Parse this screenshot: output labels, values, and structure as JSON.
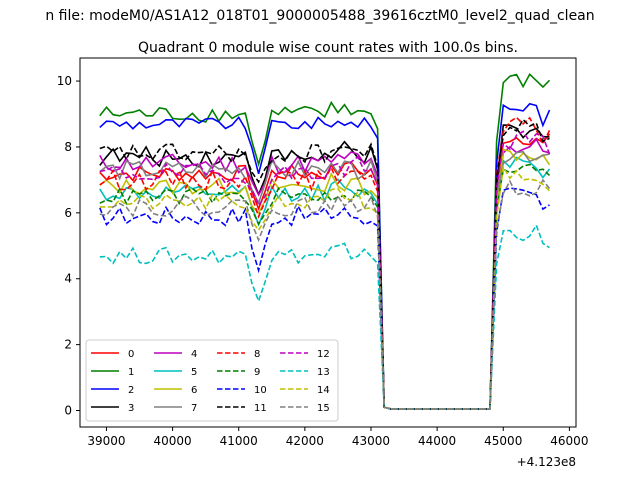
{
  "chart_data": {
    "type": "line",
    "suptitle": "n file: modeM0/AS1A12_018T01_9000005488_39616cztM0_level2_quad_clean",
    "title": "Quadrant 0 module wise count rates with 100.0s bins.",
    "xlabel": "",
    "ylabel": "",
    "x_offset_label": "+4.123e8",
    "xlim": [
      38600,
      46100
    ],
    "ylim": [
      -0.5,
      10.7
    ],
    "x_ticks": [
      39000,
      40000,
      41000,
      42000,
      43000,
      44000,
      45000,
      46000
    ],
    "x_tick_labels": [
      "39000",
      "40000",
      "41000",
      "42000",
      "43000",
      "44000",
      "45000",
      "46000"
    ],
    "y_ticks": [
      0,
      2,
      4,
      6,
      8,
      10
    ],
    "y_tick_labels": [
      "0",
      "2",
      "4",
      "6",
      "8",
      "10"
    ],
    "grid": false,
    "legend": {
      "placement": "lower-left",
      "columns": 4
    },
    "gap": {
      "x_start": 43300,
      "x_end": 44800,
      "level": 0.05,
      "entry_x": [
        43100,
        43200,
        43300
      ],
      "exit_x": [
        44800,
        44900,
        45000
      ]
    },
    "x_start": 38900,
    "x_step": 100,
    "series": [
      {
        "name": "0",
        "color": "#ff0000",
        "dash": "solid",
        "base": 7.2,
        "high": 8.3,
        "amp": 0.25,
        "dip": 1.0
      },
      {
        "name": "1",
        "color": "#008000",
        "dash": "solid",
        "base": 9.0,
        "high": 10.0,
        "amp": 0.25,
        "dip": 1.6
      },
      {
        "name": "2",
        "color": "#0000ff",
        "dash": "solid",
        "base": 8.7,
        "high": 9.2,
        "amp": 0.2,
        "dip": 1.5
      },
      {
        "name": "3",
        "color": "#000000",
        "dash": "solid",
        "base": 7.7,
        "high": 8.4,
        "amp": 0.3,
        "dip": 1.0
      },
      {
        "name": "4",
        "color": "#bf00bf",
        "dash": "solid",
        "base": 7.5,
        "high": 8.0,
        "amp": 0.3,
        "dip": 1.0
      },
      {
        "name": "5",
        "color": "#00bfbf",
        "dash": "solid",
        "base": 6.6,
        "high": 7.6,
        "amp": 0.25,
        "dip": 0.9
      },
      {
        "name": "6",
        "color": "#bfbf00",
        "dash": "solid",
        "base": 6.8,
        "high": 7.8,
        "amp": 0.25,
        "dip": 0.9
      },
      {
        "name": "7",
        "color": "#808080",
        "dash": "solid",
        "base": 7.3,
        "high": 7.8,
        "amp": 0.3,
        "dip": 1.0
      },
      {
        "name": "8",
        "color": "#ff0000",
        "dash": "dashed",
        "base": 7.0,
        "high": 8.6,
        "amp": 0.3,
        "dip": 1.0
      },
      {
        "name": "9",
        "color": "#008000",
        "dash": "dashed",
        "base": 6.5,
        "high": 7.3,
        "amp": 0.25,
        "dip": 0.9
      },
      {
        "name": "10",
        "color": "#0000ff",
        "dash": "dashed",
        "base": 5.9,
        "high": 6.5,
        "amp": 0.3,
        "dip": 1.6
      },
      {
        "name": "11",
        "color": "#000000",
        "dash": "dashed",
        "base": 7.8,
        "high": 8.6,
        "amp": 0.3,
        "dip": 1.0
      },
      {
        "name": "12",
        "color": "#bf00bf",
        "dash": "dashed",
        "base": 7.2,
        "high": 8.2,
        "amp": 0.3,
        "dip": 1.0
      },
      {
        "name": "13",
        "color": "#00bfbf",
        "dash": "dashed",
        "base": 4.7,
        "high": 5.4,
        "amp": 0.25,
        "dip": 1.3
      },
      {
        "name": "14",
        "color": "#bfbf00",
        "dash": "dashed",
        "base": 6.3,
        "high": 7.2,
        "amp": 0.25,
        "dip": 0.9
      },
      {
        "name": "15",
        "color": "#808080",
        "dash": "dashed",
        "base": 6.2,
        "high": 6.8,
        "amp": 0.3,
        "dip": 1.0
      }
    ]
  }
}
